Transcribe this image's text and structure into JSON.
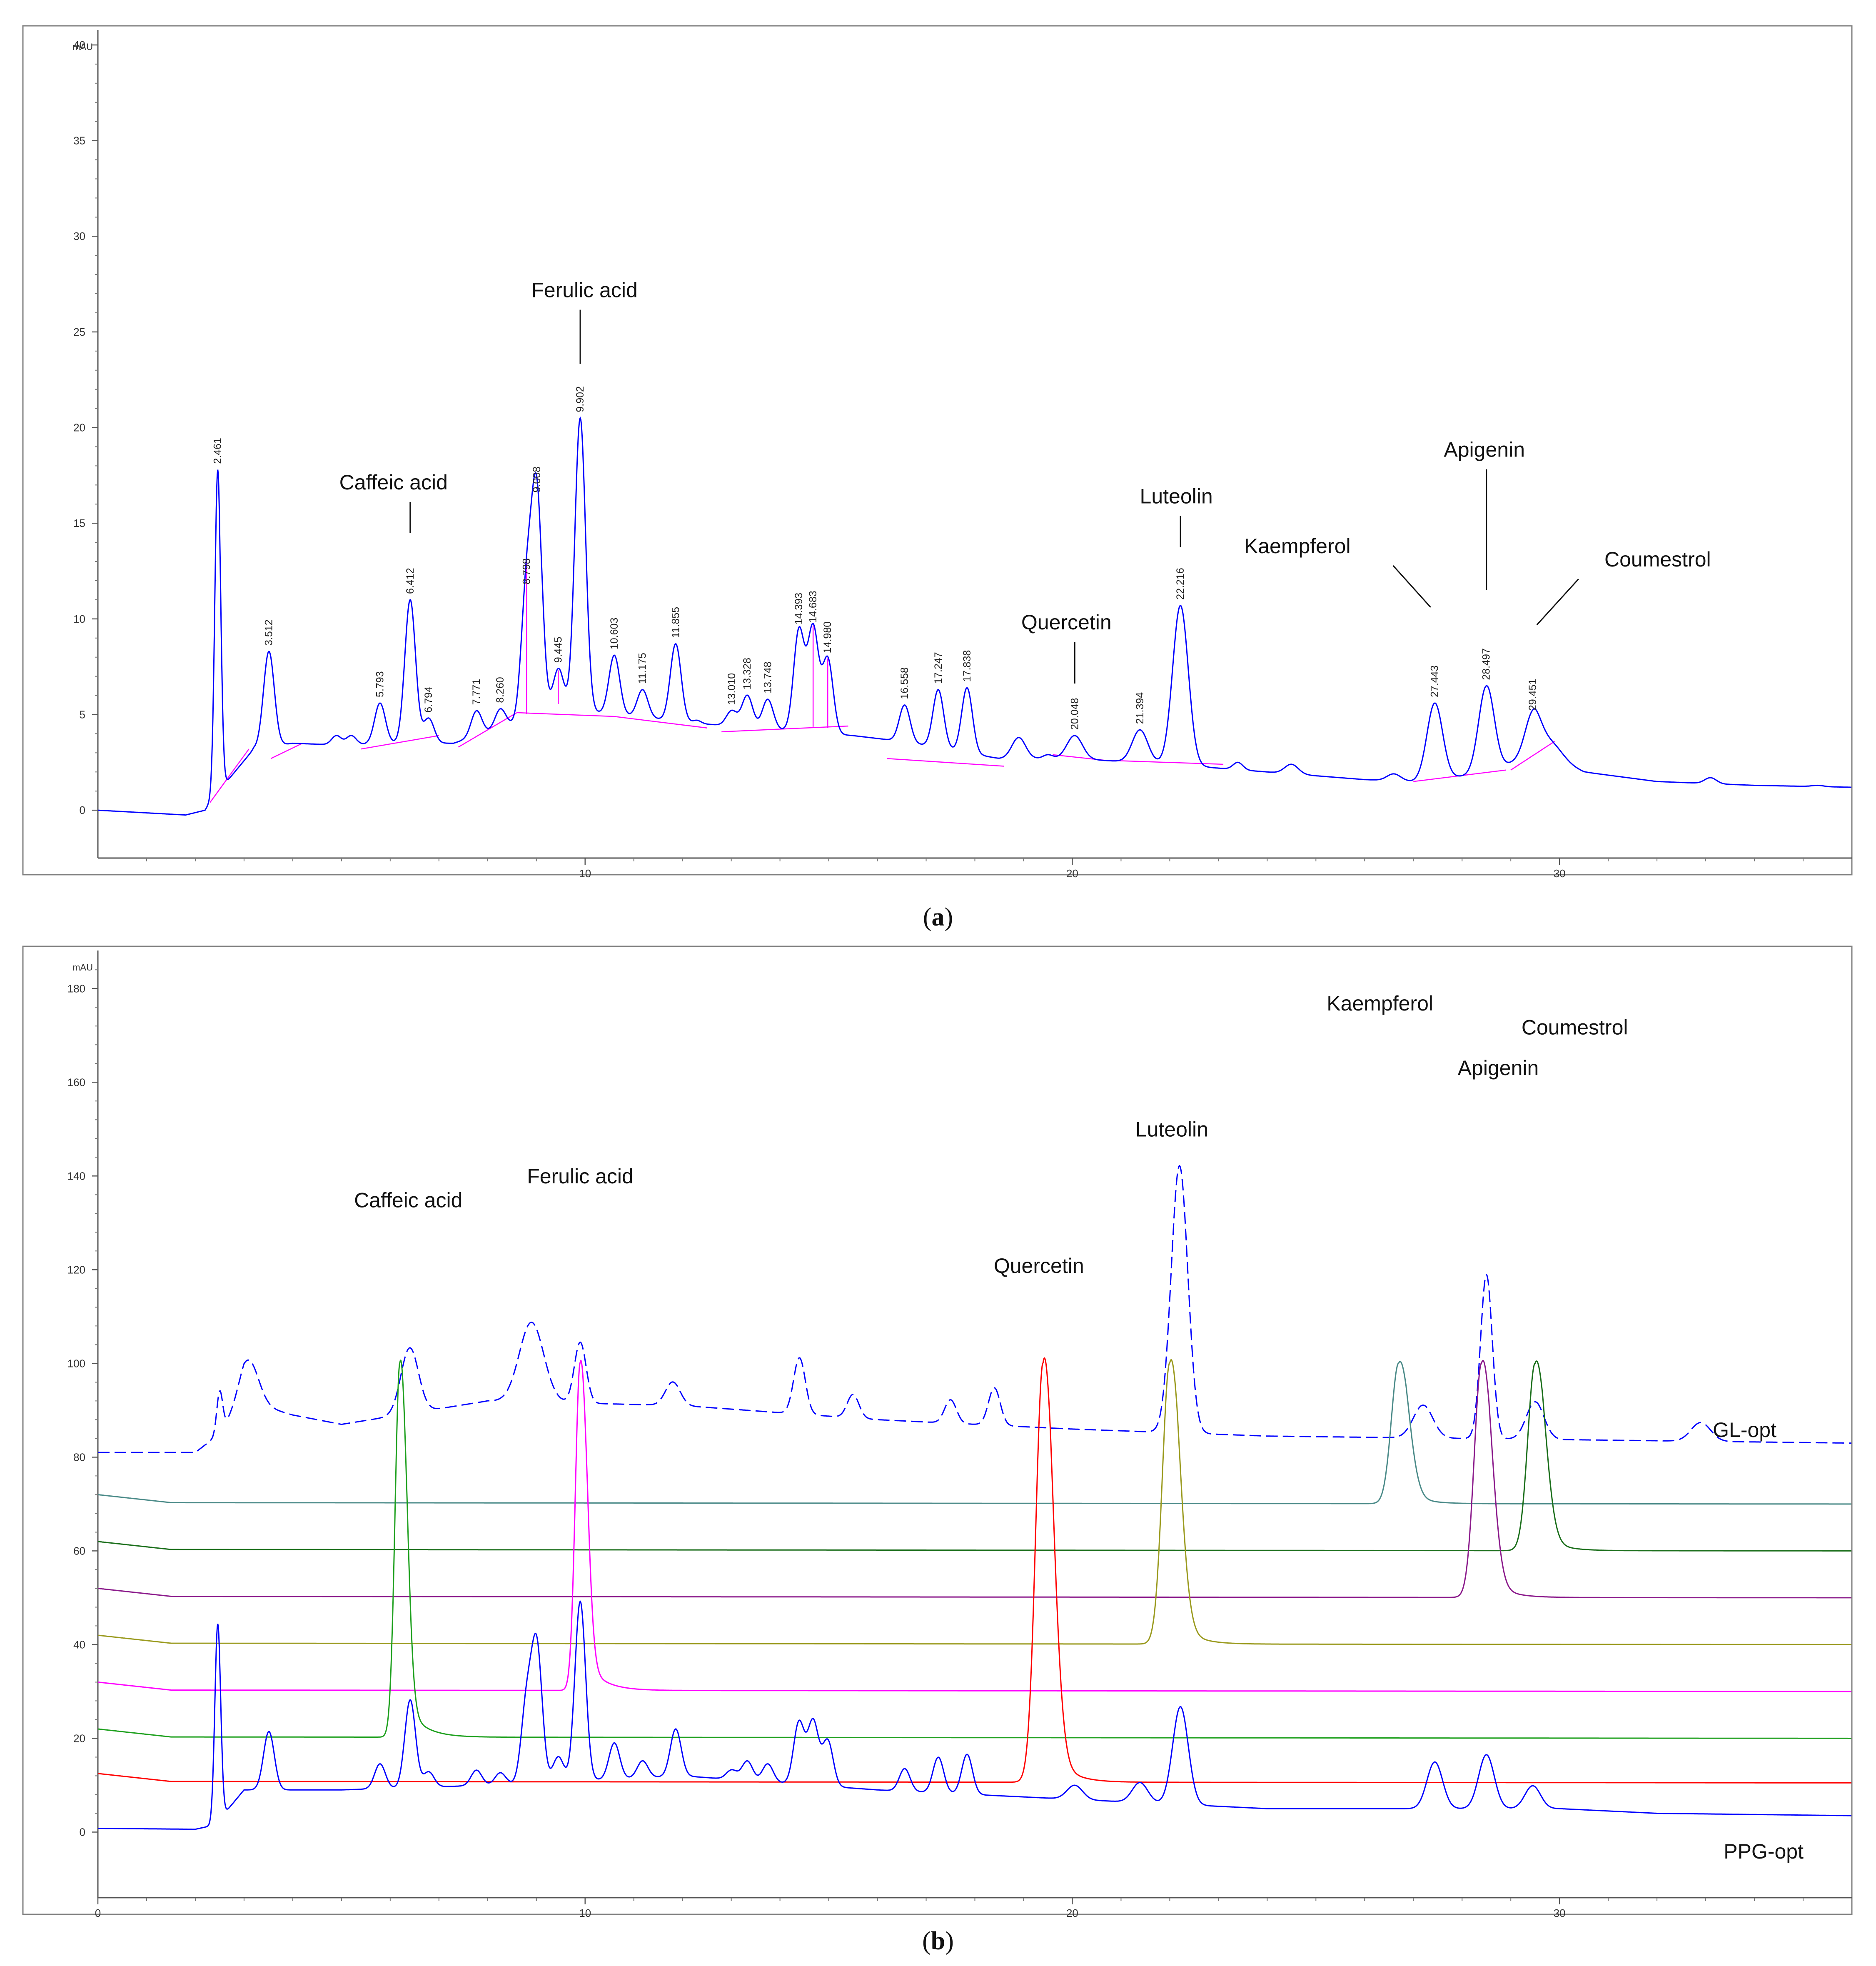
{
  "chart_data": [
    {
      "type": "line",
      "caption": "a",
      "ylabel": "mAU",
      "xlim": [
        0,
        36
      ],
      "ylim": [
        -2.5,
        41
      ],
      "x_ticks": [
        "10",
        "20",
        "30"
      ],
      "y_ticks": [
        "0",
        "5",
        "10",
        "15",
        "20",
        "25",
        "30",
        "35",
        "40"
      ],
      "grid": false,
      "trace_color": "#0000ff",
      "baseline_color": "#ff00ff",
      "peaks": [
        {
          "rt": "2.461",
          "x": 2.46,
          "height": 17.8
        },
        {
          "rt": "3.512",
          "x": 3.51,
          "height": 8.3
        },
        {
          "rt": "5.793",
          "x": 5.79,
          "height": 5.6
        },
        {
          "rt": "6.412",
          "x": 6.41,
          "height": 11.0
        },
        {
          "rt": "6.794",
          "x": 6.79,
          "height": 4.8
        },
        {
          "rt": "7.771",
          "x": 7.77,
          "height": 5.2
        },
        {
          "rt": "8.260",
          "x": 8.26,
          "height": 5.3
        },
        {
          "rt": "8.798",
          "x": 8.8,
          "height": 11.5
        },
        {
          "rt": "9.008",
          "x": 9.01,
          "height": 16.3
        },
        {
          "rt": "9.445",
          "x": 9.45,
          "height": 7.4
        },
        {
          "rt": "9.902",
          "x": 9.9,
          "height": 20.5
        },
        {
          "rt": "10.603",
          "x": 10.6,
          "height": 8.1
        },
        {
          "rt": "11.175",
          "x": 11.18,
          "height": 6.3
        },
        {
          "rt": "11.855",
          "x": 11.86,
          "height": 8.7
        },
        {
          "rt": "13.010",
          "x": 13.01,
          "height": 5.2
        },
        {
          "rt": "13.328",
          "x": 13.33,
          "height": 6.0
        },
        {
          "rt": "13.748",
          "x": 13.75,
          "height": 5.8
        },
        {
          "rt": "14.393",
          "x": 14.39,
          "height": 9.4
        },
        {
          "rt": "14.683",
          "x": 14.68,
          "height": 9.5
        },
        {
          "rt": "14.980",
          "x": 14.98,
          "height": 7.9
        },
        {
          "rt": "16.558",
          "x": 16.56,
          "height": 5.5
        },
        {
          "rt": "17.247",
          "x": 17.25,
          "height": 6.3
        },
        {
          "rt": "17.838",
          "x": 17.84,
          "height": 6.4
        },
        {
          "rt": "20.048",
          "x": 20.05,
          "height": 3.9
        },
        {
          "rt": "21.394",
          "x": 21.39,
          "height": 4.2
        },
        {
          "rt": "22.216",
          "x": 22.22,
          "height": 10.7
        },
        {
          "rt": "27.443",
          "x": 27.44,
          "height": 5.6
        },
        {
          "rt": "28.497",
          "x": 28.5,
          "height": 6.5
        },
        {
          "rt": "29.451",
          "x": 29.45,
          "height": 4.9
        }
      ],
      "compounds": [
        {
          "name": "Caffeic acid",
          "rt": 6.41,
          "height": 11.0
        },
        {
          "name": "Ferulic acid",
          "rt": 9.9,
          "height": 20.5
        },
        {
          "name": "Quercetin",
          "rt": 20.05,
          "height": 3.9
        },
        {
          "name": "Luteolin",
          "rt": 22.22,
          "height": 10.7
        },
        {
          "name": "Kaempferol",
          "rt": 27.44,
          "height": 5.6
        },
        {
          "name": "Apigenin",
          "rt": 28.5,
          "height": 6.5
        },
        {
          "name": "Coumestrol",
          "rt": 29.45,
          "height": 4.9
        }
      ]
    },
    {
      "type": "line",
      "caption": "b",
      "ylabel": "mAU",
      "xlim": [
        0,
        36
      ],
      "ylim": [
        -14,
        189
      ],
      "x_ticks": [
        "0",
        "10",
        "20",
        "30"
      ],
      "y_ticks": [
        "0",
        "20",
        "40",
        "60",
        "80",
        "100",
        "120",
        "140",
        "160",
        "180"
      ],
      "grid": false,
      "series": [
        {
          "name": "GL-opt",
          "color": "#0000ff",
          "dashed": true,
          "baseline": 84,
          "peaks": [
            [
              6.4,
              18
            ],
            [
              9.0,
              21
            ],
            [
              9.9,
              20
            ],
            [
              22.2,
              55
            ],
            [
              27.4,
              7
            ],
            [
              28.5,
              35
            ],
            [
              29.5,
              7
            ]
          ]
        },
        {
          "name": "Kaempferol standard",
          "color": "#4a8a88",
          "baseline": 70,
          "peaks": [
            [
              26.7,
              100
            ]
          ]
        },
        {
          "name": "Coumestrol standard",
          "color": "#1a6e1a",
          "baseline": 60,
          "peaks": [
            [
              29.5,
              100
            ]
          ]
        },
        {
          "name": "Apigenin standard",
          "color": "#8b1a8b",
          "baseline": 50,
          "peaks": [
            [
              28.4,
              100
            ]
          ]
        },
        {
          "name": "Luteolin standard",
          "color": "#9a9a1e",
          "baseline": 40,
          "peaks": [
            [
              22.0,
              100
            ]
          ]
        },
        {
          "name": "Ferulic acid standard",
          "color": "#ff00ff",
          "baseline": 30,
          "peaks": [
            [
              9.9,
              100
            ]
          ]
        },
        {
          "name": "Caffeic acid standard",
          "color": "#1ea01e",
          "baseline": 20,
          "peaks": [
            [
              6.2,
              100
            ]
          ]
        },
        {
          "name": "Quercetin standard",
          "color": "#ff0000",
          "baseline": 10.5,
          "peaks": [
            [
              19.4,
              100
            ]
          ]
        },
        {
          "name": "PPG-opt",
          "color": "#0000ff",
          "baseline": 3.5,
          "peaks": [
            [
              2.5,
              45
            ],
            [
              6.4,
              28
            ],
            [
              9.0,
              42
            ],
            [
              9.9,
              52
            ],
            [
              22.2,
              27
            ],
            [
              28.5,
              17
            ]
          ]
        }
      ],
      "series_labels": [
        "GL-opt",
        "PPG-opt"
      ],
      "compounds": [
        {
          "name": "Caffeic acid",
          "rt": 6.2,
          "height": 120
        },
        {
          "name": "Ferulic acid",
          "rt": 9.9,
          "height": 130
        },
        {
          "name": "Quercetin",
          "rt": 19.4,
          "height": 110
        },
        {
          "name": "Luteolin",
          "rt": 22.0,
          "height": 140
        },
        {
          "name": "Kaempferol",
          "rt": 26.7,
          "height": 170
        },
        {
          "name": "Apigenin",
          "rt": 28.4,
          "height": 150
        },
        {
          "name": "Coumestrol",
          "rt": 29.5,
          "height": 160
        }
      ]
    }
  ]
}
